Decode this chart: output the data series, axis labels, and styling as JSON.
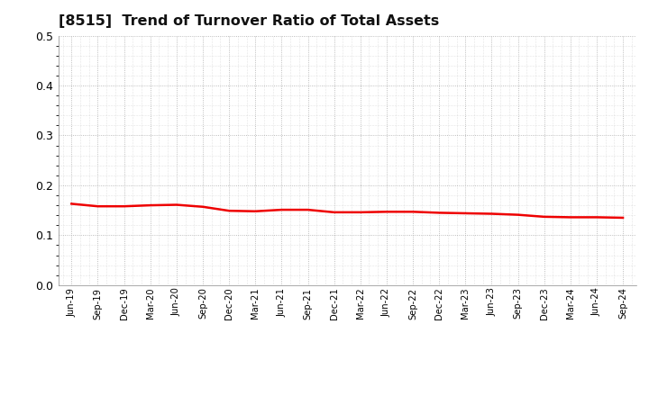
{
  "title": "[8515]  Trend of Turnover Ratio of Total Assets",
  "title_fontsize": 11.5,
  "line_color": "#ee0000",
  "line_width": 1.8,
  "background_color": "#ffffff",
  "grid_color": "#aaaaaa",
  "ylim": [
    0.0,
    0.5
  ],
  "yticks": [
    0.0,
    0.1,
    0.2,
    0.3,
    0.4,
    0.5
  ],
  "x_labels": [
    "Jun-19",
    "Sep-19",
    "Dec-19",
    "Mar-20",
    "Jun-20",
    "Sep-20",
    "Dec-20",
    "Mar-21",
    "Jun-21",
    "Sep-21",
    "Dec-21",
    "Mar-22",
    "Jun-22",
    "Sep-22",
    "Dec-22",
    "Mar-23",
    "Jun-23",
    "Sep-23",
    "Dec-23",
    "Mar-24",
    "Jun-24",
    "Sep-24"
  ],
  "values": [
    0.163,
    0.158,
    0.158,
    0.16,
    0.161,
    0.157,
    0.149,
    0.148,
    0.151,
    0.151,
    0.146,
    0.146,
    0.147,
    0.147,
    0.145,
    0.144,
    0.143,
    0.141,
    0.137,
    0.136,
    0.136,
    0.135
  ]
}
